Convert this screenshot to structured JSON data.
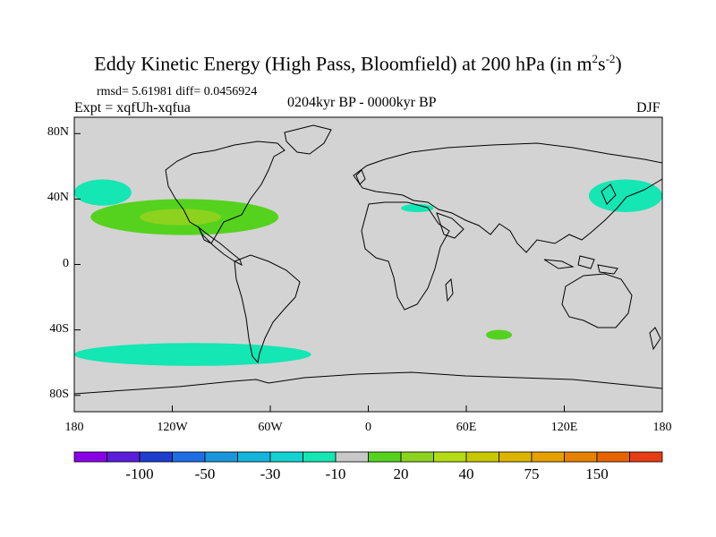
{
  "title": {
    "main": "Eddy Kinetic Energy (High Pass, Bloomfield) at 200 hPa (in m",
    "sup1": "2",
    "s": "s",
    "sup2": "-2",
    "close": ")"
  },
  "stats": "rmsd= 5.61981 diff= 0.0456924",
  "experiment": "Expt = xqfUh-xqfua",
  "period": "0204kyr BP - 0000kyr BP",
  "season": "DJF",
  "map": {
    "projection": "cylindrical-equidistant",
    "lat_range": [
      -90,
      90
    ],
    "lon_range": [
      -180,
      180
    ],
    "y_ticks": [
      "80N",
      "40N",
      "0",
      "40S",
      "80S"
    ],
    "x_ticks": [
      "180",
      "120W",
      "60W",
      "0",
      "60E",
      "120E",
      "180"
    ],
    "background_color": "#d3d3d3",
    "anomaly_regions": [
      {
        "name": "north-pacific-east",
        "value_class": "-10",
        "lon": [
          -180,
          -145
        ],
        "lat": [
          36,
          52
        ]
      },
      {
        "name": "northwest-pacific",
        "value_class": "-10",
        "lon": [
          135,
          180
        ],
        "lat": [
          32,
          52
        ]
      },
      {
        "name": "central-asia",
        "value_class": "-10",
        "lon": [
          20,
          40
        ],
        "lat": [
          32,
          37
        ]
      },
      {
        "name": "southern-ocean-pacific",
        "value_class": "-10",
        "lon": [
          -180,
          -35
        ],
        "lat": [
          -62,
          -48
        ]
      },
      {
        "name": "southern-ocean-indian",
        "value_class": "20",
        "lon": [
          72,
          88
        ],
        "lat": [
          -46,
          -40
        ]
      },
      {
        "name": "subtropical-jet-america",
        "value_class": "20",
        "lon": [
          -170,
          -55
        ],
        "lat": [
          18,
          40
        ]
      },
      {
        "name": "subtropical-jet-core",
        "value_class": "40",
        "lon": [
          -140,
          -90
        ],
        "lat": [
          24,
          34
        ]
      }
    ]
  },
  "colorbar": {
    "colors": [
      "#8a00e6",
      "#5a1edc",
      "#1e3ccd",
      "#1e6ee6",
      "#1a96dc",
      "#14b4dc",
      "#14d2d2",
      "#14e6b4",
      "#c8c8c8",
      "#55d21e",
      "#8cd21e",
      "#b4dc14",
      "#c8c800",
      "#dcb400",
      "#e6a000",
      "#e68200",
      "#e66400",
      "#e63c14"
    ],
    "labels": [
      "-100",
      "-50",
      "-30",
      "-10",
      "20",
      "40",
      "75",
      "150"
    ]
  }
}
